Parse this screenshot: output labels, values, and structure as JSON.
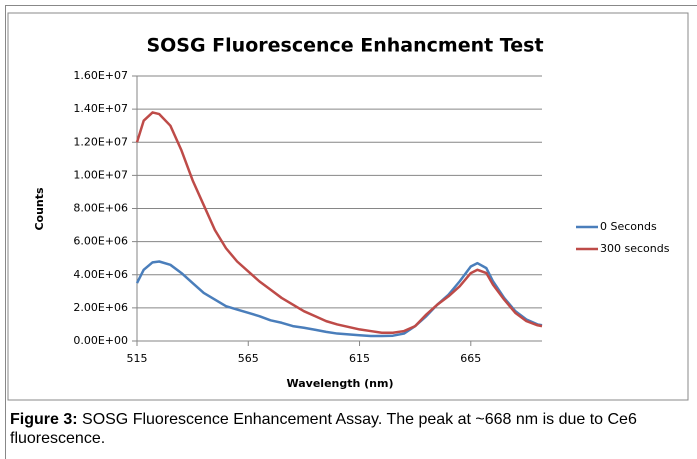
{
  "chart_data": {
    "type": "line",
    "title": "SOSG Fluorescence Enhancment Test",
    "x_label": "Wavelength (nm)",
    "y_label": "Counts",
    "x": [
      515,
      518,
      522,
      525,
      530,
      535,
      540,
      545,
      550,
      555,
      560,
      565,
      570,
      575,
      580,
      585,
      590,
      595,
      600,
      605,
      610,
      615,
      620,
      625,
      630,
      635,
      640,
      645,
      650,
      655,
      660,
      665,
      668,
      672,
      675,
      680,
      685,
      690,
      695,
      697
    ],
    "series": [
      {
        "name": "0 Seconds",
        "color": "#4a7ebb",
        "values": [
          3500000,
          4300000,
          4750000,
          4800000,
          4600000,
          4100000,
          3500000,
          2900000,
          2500000,
          2100000,
          1900000,
          1700000,
          1500000,
          1250000,
          1100000,
          900000,
          800000,
          680000,
          550000,
          450000,
          400000,
          350000,
          300000,
          300000,
          320000,
          450000,
          900000,
          1500000,
          2200000,
          2800000,
          3600000,
          4500000,
          4700000,
          4400000,
          3600000,
          2600000,
          1800000,
          1300000,
          1000000,
          950000
        ]
      },
      {
        "name": "300 seconds",
        "color": "#be4b48",
        "values": [
          12000000,
          13300000,
          13800000,
          13700000,
          13000000,
          11500000,
          9700000,
          8200000,
          6700000,
          5600000,
          4800000,
          4200000,
          3600000,
          3100000,
          2600000,
          2200000,
          1800000,
          1500000,
          1200000,
          1000000,
          850000,
          700000,
          600000,
          500000,
          500000,
          600000,
          900000,
          1600000,
          2200000,
          2700000,
          3300000,
          4100000,
          4300000,
          4100000,
          3400000,
          2500000,
          1700000,
          1200000,
          950000,
          900000
        ]
      }
    ],
    "xlim": [
      515,
      697
    ],
    "xticks": [
      515,
      565,
      615,
      665
    ],
    "ylim": [
      0,
      16000000
    ],
    "yticks": [
      {
        "value": 0,
        "label": "0.00E+00"
      },
      {
        "value": 2000000,
        "label": "2.00E+06"
      },
      {
        "value": 4000000,
        "label": "4.00E+06"
      },
      {
        "value": 6000000,
        "label": "6.00E+06"
      },
      {
        "value": 8000000,
        "label": "8.00E+06"
      },
      {
        "value": 10000000,
        "label": "1.00E+07"
      },
      {
        "value": 12000000,
        "label": "1.20E+07"
      },
      {
        "value": 14000000,
        "label": "1.40E+07"
      },
      {
        "value": 16000000,
        "label": "1.60E+07"
      }
    ],
    "grid": true,
    "legend": "right"
  },
  "caption": {
    "label": "Figure 3:",
    "text": "SOSG Fluorescence Enhancement Assay. The peak at ~668 nm is due to Ce6 fluorescence."
  }
}
